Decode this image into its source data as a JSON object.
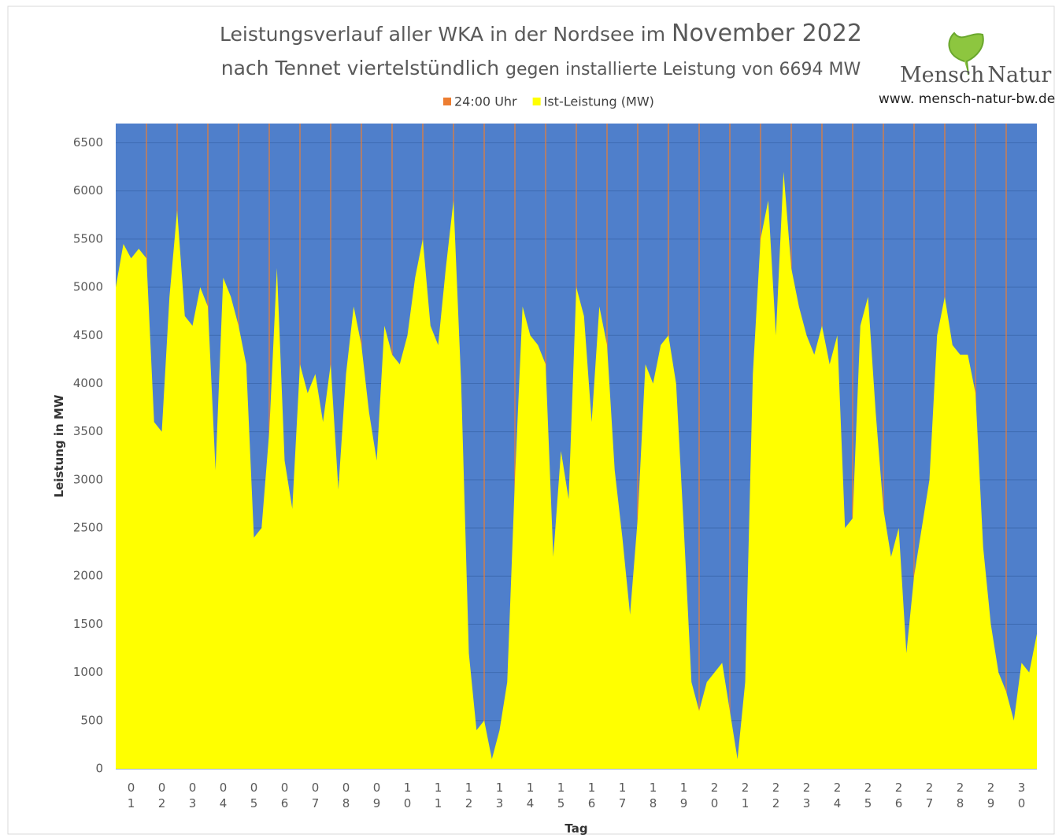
{
  "chart_data": {
    "type": "area",
    "title": "Leistungsverlauf aller WKA in der Nordsee im",
    "title_highlight": "November 2022",
    "subtitle": "nach Tennet viertelstündlich",
    "subtitle_detail": "gegen installierte Leistung von 6694 MW",
    "logo": {
      "left": "Mensch",
      "right": "Natur",
      "url": "www. mensch-natur-bw.de"
    },
    "ylabel": "Leistung in MW",
    "xlabel": "Tag",
    "plot_background": "#4f7fcb",
    "grid": true,
    "grid_color": "#3e6bb2",
    "legend": "top",
    "ylim": [
      0,
      6700
    ],
    "yticks": [
      0,
      500,
      1000,
      1500,
      2000,
      2500,
      3000,
      3500,
      4000,
      4500,
      5000,
      5500,
      6000,
      6500
    ],
    "xlim": [
      0,
      30
    ],
    "xticks": [
      {
        "value": 0.5,
        "label": "01"
      },
      {
        "value": 1.5,
        "label": "02"
      },
      {
        "value": 2.5,
        "label": "03"
      },
      {
        "value": 3.5,
        "label": "04"
      },
      {
        "value": 4.5,
        "label": "05"
      },
      {
        "value": 5.5,
        "label": "06"
      },
      {
        "value": 6.5,
        "label": "07"
      },
      {
        "value": 7.5,
        "label": "08"
      },
      {
        "value": 8.5,
        "label": "09"
      },
      {
        "value": 9.5,
        "label": "10"
      },
      {
        "value": 10.5,
        "label": "11"
      },
      {
        "value": 11.5,
        "label": "12"
      },
      {
        "value": 12.5,
        "label": "13"
      },
      {
        "value": 13.5,
        "label": "14"
      },
      {
        "value": 14.5,
        "label": "15"
      },
      {
        "value": 15.5,
        "label": "16"
      },
      {
        "value": 16.5,
        "label": "17"
      },
      {
        "value": 17.5,
        "label": "18"
      },
      {
        "value": 18.5,
        "label": "19"
      },
      {
        "value": 19.5,
        "label": "20"
      },
      {
        "value": 20.5,
        "label": "21"
      },
      {
        "value": 21.5,
        "label": "22"
      },
      {
        "value": 22.5,
        "label": "23"
      },
      {
        "value": 23.5,
        "label": "24"
      },
      {
        "value": 24.5,
        "label": "25"
      },
      {
        "value": 25.5,
        "label": "26"
      },
      {
        "value": 26.5,
        "label": "27"
      },
      {
        "value": 27.5,
        "label": "28"
      },
      {
        "value": 28.5,
        "label": "29"
      },
      {
        "value": 29.5,
        "label": "30"
      }
    ],
    "series": [
      {
        "name": "24:00 Uhr",
        "color": "#ed7d31",
        "kind": "vline",
        "x": [
          1,
          2,
          3,
          4,
          5,
          6,
          7,
          8,
          9,
          10,
          11,
          12,
          13,
          14,
          15,
          16,
          17,
          18,
          19,
          20,
          21,
          22,
          23,
          24,
          25,
          26,
          27,
          28,
          29
        ],
        "values": [
          6700,
          6700,
          6700,
          6700,
          6700,
          6700,
          6700,
          6700,
          6700,
          6700,
          6700,
          6700,
          6700,
          6700,
          6700,
          6700,
          6700,
          6700,
          6700,
          6700,
          6700,
          6700,
          6700,
          6700,
          6700,
          6700,
          6700,
          6700,
          6700
        ]
      },
      {
        "name": "Ist-Leistung (MW)",
        "color": "#ffff00",
        "kind": "area",
        "x": [
          0,
          0.25,
          0.5,
          0.75,
          1,
          1.25,
          1.5,
          1.75,
          2,
          2.25,
          2.5,
          2.75,
          3,
          3.25,
          3.5,
          3.75,
          4,
          4.25,
          4.5,
          4.75,
          5,
          5.25,
          5.5,
          5.75,
          6,
          6.25,
          6.5,
          6.75,
          7,
          7.25,
          7.5,
          7.75,
          8,
          8.25,
          8.5,
          8.75,
          9,
          9.25,
          9.5,
          9.75,
          10,
          10.25,
          10.5,
          10.75,
          11,
          11.25,
          11.5,
          11.75,
          12,
          12.25,
          12.5,
          12.75,
          13,
          13.25,
          13.5,
          13.75,
          14,
          14.25,
          14.5,
          14.75,
          15,
          15.25,
          15.5,
          15.75,
          16,
          16.25,
          16.5,
          16.75,
          17,
          17.25,
          17.5,
          17.75,
          18,
          18.25,
          18.5,
          18.75,
          19,
          19.25,
          19.5,
          19.75,
          20,
          20.25,
          20.5,
          20.75,
          21,
          21.25,
          21.5,
          21.75,
          22,
          22.25,
          22.5,
          22.75,
          23,
          23.25,
          23.5,
          23.75,
          24,
          24.25,
          24.5,
          24.75,
          25,
          25.25,
          25.5,
          25.75,
          26,
          26.25,
          26.5,
          26.75,
          27,
          27.25,
          27.5,
          27.75,
          28,
          28.25,
          28.5,
          28.75,
          29,
          29.25,
          29.5,
          29.75,
          30
        ],
        "values": [
          5000,
          5450,
          5300,
          5400,
          5300,
          3600,
          3500,
          4900,
          5800,
          4700,
          4600,
          5000,
          4800,
          3100,
          5100,
          4900,
          4600,
          4200,
          2400,
          2500,
          3500,
          5200,
          3200,
          2700,
          4200,
          3900,
          4100,
          3600,
          4200,
          2900,
          4100,
          4800,
          4400,
          3700,
          3200,
          4600,
          4300,
          4200,
          4500,
          5100,
          5500,
          4600,
          4400,
          5200,
          5900,
          4000,
          1200,
          400,
          500,
          100,
          400,
          900,
          3000,
          4800,
          4500,
          4400,
          4200,
          2200,
          3300,
          2800,
          5000,
          4700,
          3600,
          4800,
          4400,
          3100,
          2400,
          1600,
          2600,
          4200,
          4000,
          4400,
          4500,
          4000,
          2500,
          900,
          600,
          900,
          1000,
          1100,
          600,
          100,
          900,
          4100,
          5500,
          5900,
          4500,
          6200,
          5200,
          4800,
          4500,
          4300,
          4600,
          4200,
          4500,
          2500,
          2600,
          4600,
          4900,
          3700,
          2700,
          2200,
          2500,
          1200,
          2000,
          2500,
          3000,
          4500,
          4900,
          4400,
          4300,
          4300,
          3900,
          2300,
          1500,
          1000,
          800,
          500,
          1100,
          1000,
          1400
        ]
      }
    ]
  }
}
